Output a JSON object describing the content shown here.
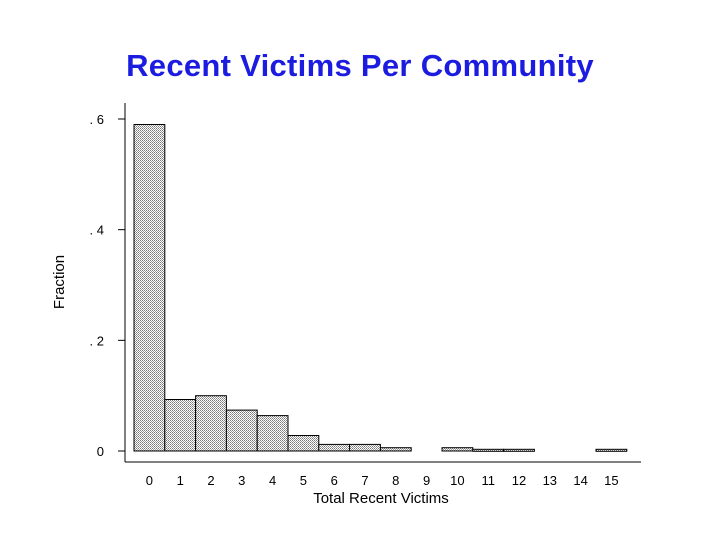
{
  "chart_data": {
    "type": "bar",
    "title": "Recent Victims Per Community",
    "xlabel": "Total Recent Victims",
    "ylabel": "Fraction",
    "categories": [
      "0",
      "1",
      "2",
      "3",
      "4",
      "5",
      "6",
      "7",
      "8",
      "9",
      "10",
      "11",
      "12",
      "13",
      "14",
      "15"
    ],
    "values": [
      0.59,
      0.093,
      0.1,
      0.074,
      0.064,
      0.028,
      0.012,
      0.012,
      0.006,
      0,
      0.006,
      0.003,
      0.003,
      0,
      0,
      0.003
    ],
    "ylim": [
      0,
      0.62
    ],
    "y_ticks": [
      {
        "value": 0,
        "label": "0"
      },
      {
        "value": 0.2,
        "label": ". 2"
      },
      {
        "value": 0.4,
        "label": ". 4"
      },
      {
        "value": 0.6,
        "label": ". 6"
      }
    ],
    "grid": false,
    "bar_fill": "#d9d9d9",
    "bar_stroke": "#000000"
  }
}
